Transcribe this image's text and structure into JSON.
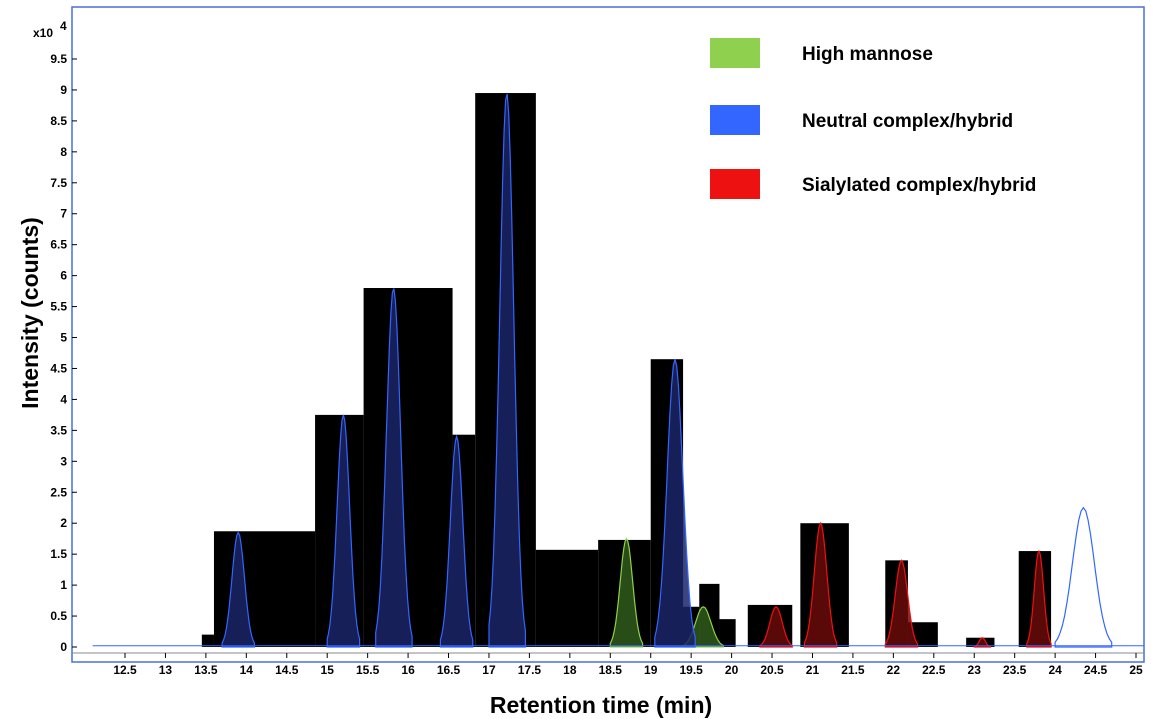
{
  "chart_data": {
    "type": "area",
    "xlabel": "Retention time (min)",
    "ylabel": "Intensity (counts)",
    "y_scale_label": "x10",
    "y_scale_exp": "4",
    "xlim": [
      12.0,
      25.15
    ],
    "ylim": [
      -0.1,
      10.05
    ],
    "x_ticks": [
      "12.5",
      "13",
      "13.5",
      "14",
      "14.5",
      "15",
      "15.5",
      "16",
      "16.5",
      "17",
      "17.5",
      "18",
      "18.5",
      "19",
      "19.5",
      "20",
      "20.5",
      "21",
      "21.5",
      "22",
      "22.5",
      "23",
      "23.5",
      "24",
      "24.5",
      "25"
    ],
    "y_ticks": [
      "0",
      "0.5",
      "1",
      "1.5",
      "2",
      "2.5",
      "3",
      "3.5",
      "4",
      "4.5",
      "5",
      "5.5",
      "6",
      "6.5",
      "7",
      "7.5",
      "8",
      "8.5",
      "9",
      "9.5"
    ],
    "grid": false,
    "legend_position": "top-right",
    "series": [
      {
        "name": "High mannose",
        "color": "#8fd14f",
        "x": [
          18.5,
          18.7,
          18.9,
          19.4,
          19.65,
          19.9
        ],
        "y": [
          0.0,
          1.75,
          0.0,
          0.0,
          0.65,
          0.0
        ]
      },
      {
        "name": "Neutral complex/hybrid",
        "color": "#3366ff",
        "x": [
          13.7,
          13.9,
          14.1,
          15.0,
          15.2,
          15.4,
          15.6,
          15.82,
          16.05,
          16.4,
          16.6,
          16.8,
          17.0,
          17.22,
          17.45,
          19.05,
          19.3,
          19.55,
          24.0,
          24.35,
          24.7
        ],
        "y": [
          0.0,
          1.85,
          0.0,
          0.0,
          3.75,
          0.0,
          0.0,
          5.8,
          0.0,
          0.0,
          3.4,
          0.0,
          0.0,
          8.95,
          0.0,
          0.0,
          4.65,
          0.0,
          0.0,
          2.25,
          0.0
        ]
      },
      {
        "name": "Sialylated complex/hybrid",
        "color": "#ee1111",
        "x": [
          20.35,
          20.55,
          20.75,
          20.9,
          21.1,
          21.3,
          21.9,
          22.1,
          22.3,
          23.0,
          23.1,
          23.2,
          23.65,
          23.8,
          23.95
        ],
        "y": [
          0.0,
          0.65,
          0.0,
          0.0,
          2.0,
          0.0,
          0.0,
          1.4,
          0.0,
          0.0,
          0.15,
          0.0,
          0.0,
          1.55,
          0.0
        ]
      }
    ],
    "bars": [
      {
        "x0": 13.45,
        "x1": 13.6,
        "h": 0.2
      },
      {
        "x0": 13.6,
        "x1": 14.85,
        "h": 1.87
      },
      {
        "x0": 14.85,
        "x1": 15.45,
        "h": 3.75
      },
      {
        "x0": 15.45,
        "x1": 16.55,
        "h": 5.8
      },
      {
        "x0": 16.55,
        "x1": 16.83,
        "h": 3.43
      },
      {
        "x0": 16.83,
        "x1": 17.58,
        "h": 8.95
      },
      {
        "x0": 17.58,
        "x1": 18.35,
        "h": 1.57
      },
      {
        "x0": 18.35,
        "x1": 19.0,
        "h": 1.73
      },
      {
        "x0": 19.0,
        "x1": 19.4,
        "h": 4.65
      },
      {
        "x0": 19.4,
        "x1": 19.6,
        "h": 0.65
      },
      {
        "x0": 19.6,
        "x1": 19.85,
        "h": 1.02
      },
      {
        "x0": 19.85,
        "x1": 20.05,
        "h": 0.45
      },
      {
        "x0": 20.2,
        "x1": 20.75,
        "h": 0.68
      },
      {
        "x0": 20.85,
        "x1": 21.45,
        "h": 2.0
      },
      {
        "x0": 21.9,
        "x1": 22.18,
        "h": 1.4
      },
      {
        "x0": 22.18,
        "x1": 22.55,
        "h": 0.4
      },
      {
        "x0": 22.9,
        "x1": 23.25,
        "h": 0.15
      },
      {
        "x0": 23.55,
        "x1": 23.95,
        "h": 1.55
      }
    ]
  }
}
